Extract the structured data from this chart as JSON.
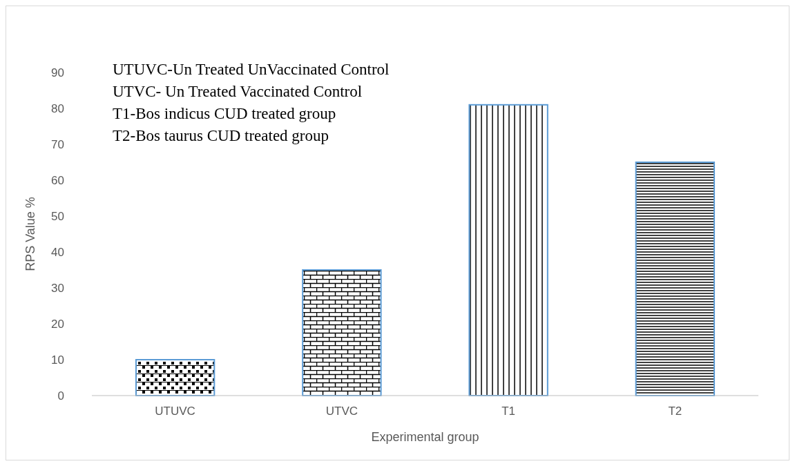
{
  "chart_data": {
    "type": "bar",
    "xlabel": "Experimental group",
    "ylabel": "RPS Value %",
    "categories": [
      "UTUVC",
      "UTVC",
      "T1",
      "T2"
    ],
    "values": [
      10,
      35,
      81,
      65
    ],
    "colors": [
      "#5b9bd5",
      "#5b9bd5",
      "#5b9bd5",
      "#5b9bd5"
    ],
    "ylim": [
      0,
      90
    ],
    "yticks": [
      0,
      10,
      20,
      30,
      40,
      50,
      60,
      70,
      80,
      90
    ],
    "annotations": [
      "UTUVC-Un Treated UnVaccinated Control",
      "UTVC- Un Treated Vaccinated Control",
      "T1-Bos indicus CUD treated group",
      "T2-Bos taurus CUD treated group"
    ]
  }
}
